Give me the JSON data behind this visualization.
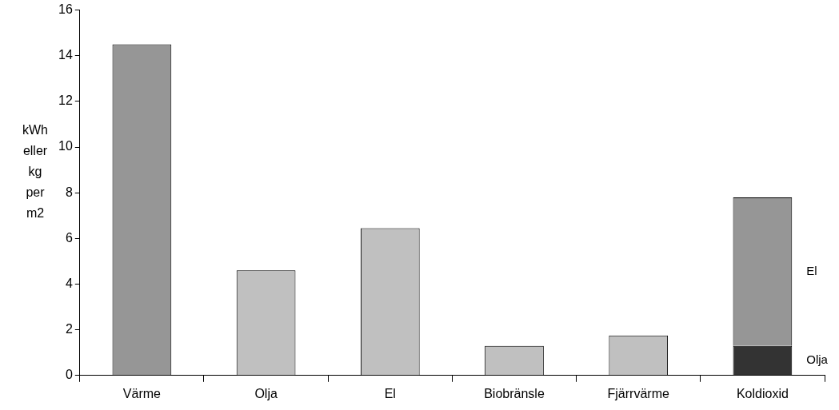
{
  "chart_data": {
    "type": "bar",
    "ylabel": "kWh eller kg per m2",
    "categories": [
      "Värme",
      "Olja",
      "El",
      "Biobränsle",
      "Fjärrvärme",
      "Koldioxid"
    ],
    "stacked": true,
    "ylim": [
      0,
      16
    ],
    "yticks": [
      0,
      2,
      4,
      6,
      8,
      10,
      12,
      14,
      16
    ],
    "grid": false,
    "legend": false,
    "series": [
      {
        "colors": [
          "#969696",
          "#c0c0c0",
          "#c0c0c0",
          "#c0c0c0",
          "#c0c0c0",
          null
        ],
        "values": [
          14.5,
          4.6,
          6.45,
          1.3,
          1.75,
          null
        ]
      },
      {
        "name": "Olja",
        "color": "#333333",
        "values": [
          null,
          null,
          null,
          null,
          null,
          1.3
        ]
      },
      {
        "name": "El",
        "color": "#969696",
        "values": [
          null,
          null,
          null,
          null,
          null,
          6.5
        ]
      }
    ]
  }
}
